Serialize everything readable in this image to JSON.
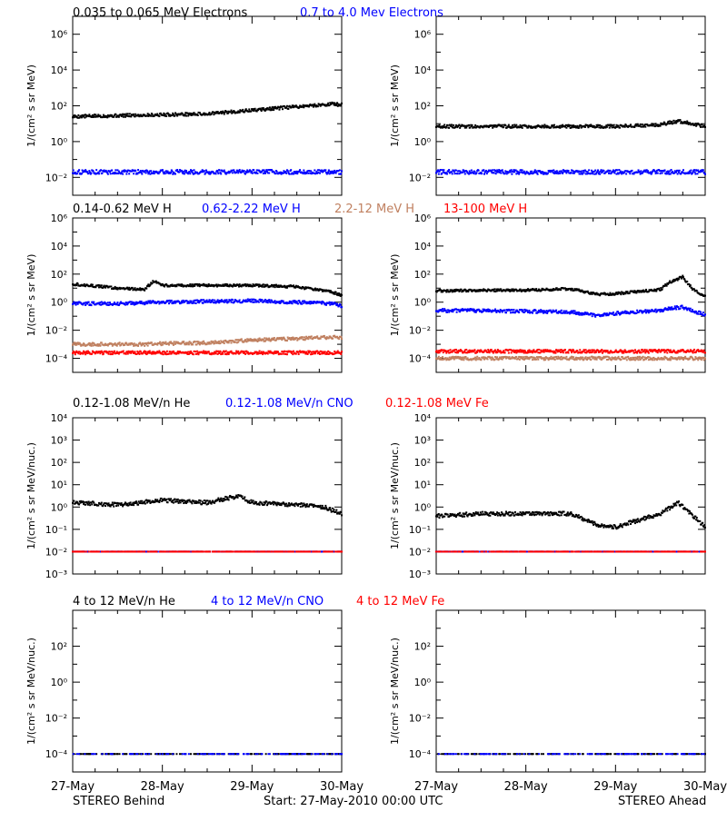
{
  "colors": {
    "black": "#000000",
    "blue": "#0000ff",
    "tan": "#c08060",
    "red": "#ff0000"
  },
  "x_tick_labels": [
    "27-May",
    "28-May",
    "29-May",
    "30-May"
  ],
  "footer": {
    "left": "STEREO Behind",
    "center": "Start: 27-May-2010 00:00 UTC",
    "right": "STEREO Ahead"
  },
  "rows": [
    {
      "legend": [
        {
          "text": "0.035 to 0.065 MeV Electrons",
          "color": "black"
        },
        {
          "text": "0.7 to 4.0 Mev Electrons",
          "color": "blue"
        }
      ],
      "ylabel": "1/(cm² s sr MeV)",
      "y_ticks": [
        {
          "exp": -2,
          "label": "10⁻²"
        },
        {
          "exp": 0,
          "label": "10⁰"
        },
        {
          "exp": 2,
          "label": "10²"
        },
        {
          "exp": 4,
          "label": "10⁴"
        },
        {
          "exp": 6,
          "label": "10⁶"
        }
      ]
    },
    {
      "legend": [
        {
          "text": "0.14-0.62 MeV H",
          "color": "black"
        },
        {
          "text": "0.62-2.22 MeV H",
          "color": "blue"
        },
        {
          "text": "2.2-12 MeV H",
          "color": "tan"
        },
        {
          "text": "13-100 MeV H",
          "color": "red"
        }
      ],
      "ylabel": "1/(cm² s sr MeV)",
      "y_ticks": [
        {
          "exp": -4,
          "label": "10⁻⁴"
        },
        {
          "exp": -2,
          "label": "10⁻²"
        },
        {
          "exp": 0,
          "label": "10⁰"
        },
        {
          "exp": 2,
          "label": "10²"
        },
        {
          "exp": 4,
          "label": "10⁴"
        },
        {
          "exp": 6,
          "label": "10⁶"
        }
      ]
    },
    {
      "legend": [
        {
          "text": "0.12-1.08 MeV/n He",
          "color": "black"
        },
        {
          "text": "0.12-1.08 MeV/n CNO",
          "color": "blue"
        },
        {
          "text": "0.12-1.08 MeV Fe",
          "color": "red"
        }
      ],
      "ylabel": "1/(cm² s sr MeV/nuc.)",
      "y_ticks": [
        {
          "exp": -3,
          "label": "10⁻³"
        },
        {
          "exp": -2,
          "label": "10⁻²"
        },
        {
          "exp": -1,
          "label": "10⁻¹"
        },
        {
          "exp": 0,
          "label": "10⁰"
        },
        {
          "exp": 1,
          "label": "10¹"
        },
        {
          "exp": 2,
          "label": "10²"
        },
        {
          "exp": 3,
          "label": "10³"
        },
        {
          "exp": 4,
          "label": "10⁴"
        }
      ]
    },
    {
      "legend": [
        {
          "text": "4 to 12 MeV/n He",
          "color": "black"
        },
        {
          "text": "4 to 12 MeV/n CNO",
          "color": "blue"
        },
        {
          "text": "4 to 12 MeV Fe",
          "color": "red"
        }
      ],
      "ylabel": "1/(cm² s sr MeV/nuc.)",
      "y_ticks": [
        {
          "exp": -4,
          "label": "10⁻⁴"
        },
        {
          "exp": -2,
          "label": "10⁻²"
        },
        {
          "exp": 0,
          "label": "10⁰"
        },
        {
          "exp": 2,
          "label": "10²"
        }
      ]
    }
  ],
  "chart_data": [
    {
      "type": "scatter",
      "panel": "behind-electrons",
      "yscale": "log",
      "ylim_exp": [
        -3,
        7
      ],
      "x": [
        0,
        0.5,
        1,
        1.5,
        2,
        2.5,
        2.9,
        3
      ],
      "series": [
        {
          "name": "0.035 to 0.065 MeV Electrons",
          "color": "black",
          "log10_values": [
            1.4,
            1.45,
            1.5,
            1.55,
            1.75,
            1.95,
            2.1,
            2.05
          ]
        },
        {
          "name": "0.7 to 4.0 Mev Electrons",
          "color": "blue",
          "log10_values": [
            -1.7,
            -1.7,
            -1.7,
            -1.7,
            -1.7,
            -1.7,
            -1.7,
            -1.7
          ]
        }
      ]
    },
    {
      "type": "scatter",
      "panel": "ahead-electrons",
      "yscale": "log",
      "ylim_exp": [
        -3,
        7
      ],
      "x": [
        0,
        0.5,
        1,
        1.5,
        2,
        2.5,
        2.7,
        3
      ],
      "series": [
        {
          "name": "0.035 to 0.065 MeV Electrons",
          "color": "black",
          "log10_values": [
            0.85,
            0.85,
            0.85,
            0.85,
            0.85,
            0.95,
            1.15,
            0.85
          ]
        },
        {
          "name": "0.7 to 4.0 Mev Electrons",
          "color": "blue",
          "log10_values": [
            -1.7,
            -1.7,
            -1.7,
            -1.7,
            -1.7,
            -1.7,
            -1.7,
            -1.7
          ]
        }
      ]
    },
    {
      "type": "scatter",
      "panel": "behind-protons",
      "yscale": "log",
      "ylim_exp": [
        -5,
        6
      ],
      "x": [
        0,
        0.5,
        0.8,
        0.9,
        1,
        1.5,
        2,
        2.5,
        2.9,
        3
      ],
      "series": [
        {
          "name": "0.14-0.62 MeV H",
          "color": "black",
          "log10_values": [
            1.3,
            1.0,
            0.9,
            1.5,
            1.2,
            1.2,
            1.2,
            1.1,
            0.7,
            0.5
          ]
        },
        {
          "name": "0.62-2.22 MeV H",
          "color": "blue",
          "log10_values": [
            -0.1,
            -0.1,
            -0.05,
            0,
            0,
            0.05,
            0.1,
            0,
            -0.1,
            -0.3
          ]
        },
        {
          "name": "2.2-12 MeV H",
          "color": "tan",
          "log10_values": [
            -3.0,
            -3.0,
            -3.0,
            -2.95,
            -2.95,
            -2.9,
            -2.7,
            -2.6,
            -2.5,
            -2.5
          ]
        },
        {
          "name": "13-100 MeV H",
          "color": "red",
          "log10_values": [
            -3.6,
            -3.6,
            -3.6,
            -3.6,
            -3.6,
            -3.6,
            -3.6,
            -3.6,
            -3.6,
            -3.6
          ]
        }
      ]
    },
    {
      "type": "scatter",
      "panel": "ahead-protons",
      "yscale": "log",
      "ylim_exp": [
        -5,
        6
      ],
      "x": [
        0,
        0.5,
        1,
        1.5,
        1.8,
        2,
        2.5,
        2.6,
        2.75,
        2.85,
        3
      ],
      "series": [
        {
          "name": "0.14-0.62 MeV H",
          "color": "black",
          "log10_values": [
            0.8,
            0.85,
            0.85,
            0.95,
            0.55,
            0.6,
            0.9,
            1.4,
            1.8,
            1.0,
            0.4
          ]
        },
        {
          "name": "0.62-2.22 MeV H",
          "color": "blue",
          "log10_values": [
            -0.6,
            -0.6,
            -0.65,
            -0.7,
            -0.95,
            -0.8,
            -0.6,
            -0.45,
            -0.35,
            -0.6,
            -0.9
          ]
        },
        {
          "name": "2.2-12 MeV H",
          "color": "tan",
          "log10_values": [
            -4.0,
            -4.0,
            -4.0,
            -4.0,
            -4.0,
            -4.0,
            -4.0,
            -4.0,
            -4.0,
            -4.0,
            -4.0
          ]
        },
        {
          "name": "13-100 MeV H",
          "color": "red",
          "log10_values": [
            -3.5,
            -3.5,
            -3.5,
            -3.5,
            -3.5,
            -3.5,
            -3.5,
            -3.5,
            -3.5,
            -3.5,
            -3.5
          ]
        }
      ]
    },
    {
      "type": "scatter",
      "panel": "behind-heavy-low",
      "yscale": "log",
      "ylim_exp": [
        -3,
        4
      ],
      "x": [
        0,
        0.5,
        1,
        1.5,
        1.85,
        2,
        2.5,
        2.8,
        3
      ],
      "series": [
        {
          "name": "0.12-1.08 MeV/n He",
          "color": "black",
          "log10_values": [
            0.2,
            0.1,
            0.3,
            0.2,
            0.5,
            0.2,
            0.1,
            0.0,
            -0.3
          ]
        },
        {
          "name": "0.12-1.08 MeV/n CNO",
          "color": "blue",
          "log10_values": [
            -2.0,
            -2.0,
            -2.0,
            -2.0,
            -2.0,
            -2.0,
            -2.0,
            -2.0,
            -2.0
          ]
        },
        {
          "name": "0.12-1.08 MeV Fe",
          "color": "red",
          "log10_values": [
            -2.0,
            -2.0,
            -2.0,
            -2.0,
            -2.0,
            -2.0,
            -2.0,
            -2.0,
            -2.0
          ]
        }
      ]
    },
    {
      "type": "scatter",
      "panel": "ahead-heavy-low",
      "yscale": "log",
      "ylim_exp": [
        -3,
        4
      ],
      "x": [
        0,
        0.5,
        1,
        1.5,
        1.8,
        2,
        2.5,
        2.7,
        3
      ],
      "series": [
        {
          "name": "0.12-1.08 MeV/n He",
          "color": "black",
          "log10_values": [
            -0.4,
            -0.3,
            -0.3,
            -0.3,
            -0.8,
            -0.9,
            -0.3,
            0.2,
            -0.9
          ]
        },
        {
          "name": "0.12-1.08 MeV/n CNO",
          "color": "blue",
          "log10_values": [
            -2.0,
            -2.0,
            -2.0,
            -2.0,
            -2.0,
            -2.0,
            -2.0,
            -2.0,
            -2.0
          ]
        },
        {
          "name": "0.12-1.08 MeV Fe",
          "color": "red",
          "log10_values": [
            -2.0,
            -2.0,
            -2.0,
            -2.0,
            -2.0,
            -2.0,
            -2.0,
            -2.0,
            -2.0
          ]
        }
      ]
    },
    {
      "type": "scatter",
      "panel": "behind-heavy-high",
      "yscale": "log",
      "ylim_exp": [
        -5,
        4
      ],
      "x": [
        0,
        1,
        2,
        3
      ],
      "series": [
        {
          "name": "4 to 12 MeV/n He",
          "color": "black",
          "log10_values": [
            -4.0,
            -4.0,
            -4.0,
            -4.0
          ]
        },
        {
          "name": "4 to 12 MeV/n CNO",
          "color": "blue",
          "log10_values": [
            -4.0,
            -4.0,
            -4.0,
            -4.0
          ]
        }
      ]
    },
    {
      "type": "scatter",
      "panel": "ahead-heavy-high",
      "yscale": "log",
      "ylim_exp": [
        -5,
        4
      ],
      "x": [
        0,
        1,
        2,
        3
      ],
      "series": [
        {
          "name": "4 to 12 MeV/n He",
          "color": "black",
          "log10_values": [
            -4.0,
            -4.0,
            -4.0,
            -4.0
          ]
        },
        {
          "name": "4 to 12 MeV/n CNO",
          "color": "blue",
          "log10_values": [
            -4.0,
            -4.0,
            -4.0,
            -4.0
          ]
        }
      ]
    }
  ]
}
